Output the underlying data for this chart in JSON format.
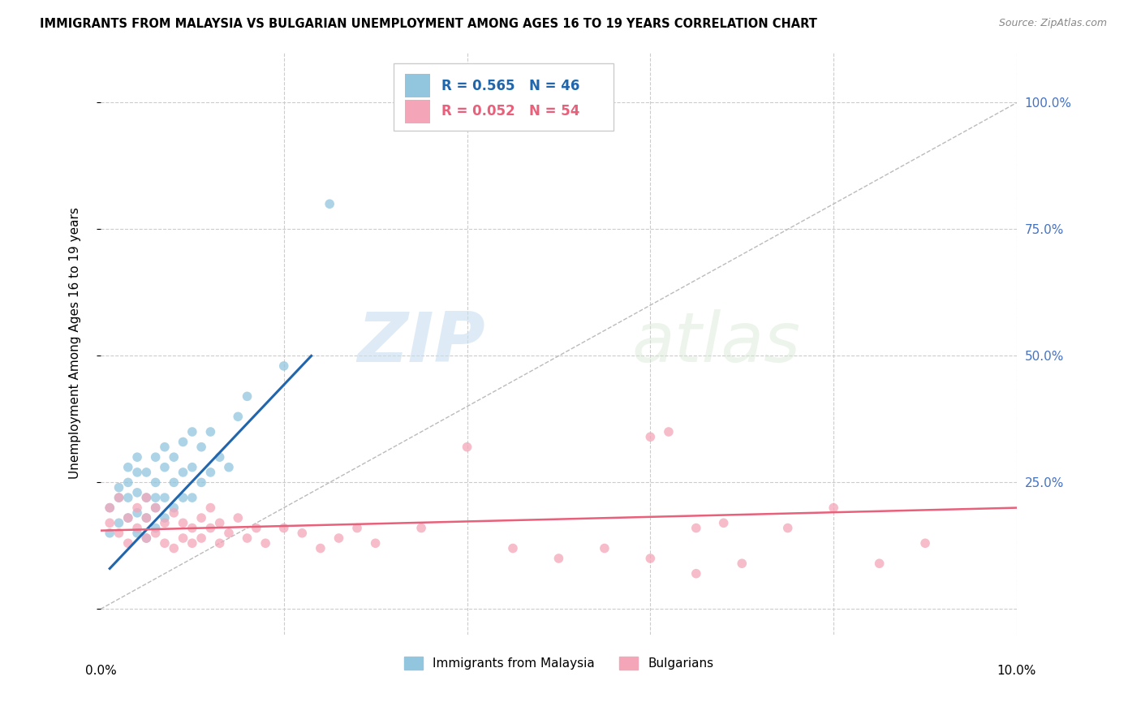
{
  "title": "IMMIGRANTS FROM MALAYSIA VS BULGARIAN UNEMPLOYMENT AMONG AGES 16 TO 19 YEARS CORRELATION CHART",
  "source": "Source: ZipAtlas.com",
  "ylabel": "Unemployment Among Ages 16 to 19 years",
  "xlim": [
    0.0,
    0.1
  ],
  "ylim": [
    -0.05,
    1.1
  ],
  "watermark_zip": "ZIP",
  "watermark_atlas": "atlas",
  "legend1_label": "Immigrants from Malaysia",
  "legend2_label": "Bulgarians",
  "r1": "0.565",
  "n1": "46",
  "r2": "0.052",
  "n2": "54",
  "blue_color": "#92c5de",
  "pink_color": "#f4a6b8",
  "blue_line_color": "#2166ac",
  "pink_line_color": "#e8607a",
  "diagonal_color": "#bbbbbb",
  "blue_scatter_x": [
    0.001,
    0.001,
    0.002,
    0.002,
    0.002,
    0.003,
    0.003,
    0.003,
    0.003,
    0.004,
    0.004,
    0.004,
    0.004,
    0.004,
    0.005,
    0.005,
    0.005,
    0.005,
    0.006,
    0.006,
    0.006,
    0.006,
    0.006,
    0.007,
    0.007,
    0.007,
    0.007,
    0.008,
    0.008,
    0.008,
    0.009,
    0.009,
    0.009,
    0.01,
    0.01,
    0.01,
    0.011,
    0.011,
    0.012,
    0.012,
    0.013,
    0.014,
    0.015,
    0.016,
    0.02,
    0.025
  ],
  "blue_scatter_y": [
    0.15,
    0.2,
    0.17,
    0.22,
    0.24,
    0.18,
    0.22,
    0.25,
    0.28,
    0.15,
    0.19,
    0.23,
    0.27,
    0.3,
    0.14,
    0.18,
    0.22,
    0.27,
    0.16,
    0.2,
    0.22,
    0.25,
    0.3,
    0.18,
    0.22,
    0.28,
    0.32,
    0.2,
    0.25,
    0.3,
    0.22,
    0.27,
    0.33,
    0.22,
    0.28,
    0.35,
    0.25,
    0.32,
    0.27,
    0.35,
    0.3,
    0.28,
    0.38,
    0.42,
    0.48,
    0.8
  ],
  "pink_scatter_x": [
    0.001,
    0.001,
    0.002,
    0.002,
    0.003,
    0.003,
    0.004,
    0.004,
    0.005,
    0.005,
    0.005,
    0.006,
    0.006,
    0.007,
    0.007,
    0.008,
    0.008,
    0.009,
    0.009,
    0.01,
    0.01,
    0.011,
    0.011,
    0.012,
    0.012,
    0.013,
    0.013,
    0.014,
    0.015,
    0.016,
    0.017,
    0.018,
    0.02,
    0.022,
    0.024,
    0.026,
    0.028,
    0.03,
    0.035,
    0.04,
    0.045,
    0.05,
    0.055,
    0.06,
    0.065,
    0.07,
    0.075,
    0.08,
    0.085,
    0.09,
    0.06,
    0.062,
    0.065,
    0.068
  ],
  "pink_scatter_y": [
    0.17,
    0.2,
    0.15,
    0.22,
    0.13,
    0.18,
    0.16,
    0.2,
    0.14,
    0.18,
    0.22,
    0.15,
    0.2,
    0.13,
    0.17,
    0.12,
    0.19,
    0.14,
    0.17,
    0.13,
    0.16,
    0.14,
    0.18,
    0.16,
    0.2,
    0.13,
    0.17,
    0.15,
    0.18,
    0.14,
    0.16,
    0.13,
    0.16,
    0.15,
    0.12,
    0.14,
    0.16,
    0.13,
    0.16,
    0.32,
    0.12,
    0.1,
    0.12,
    0.1,
    0.07,
    0.09,
    0.16,
    0.2,
    0.09,
    0.13,
    0.34,
    0.35,
    0.16,
    0.17
  ],
  "blue_trend_x": [
    0.001,
    0.023
  ],
  "blue_trend_y": [
    0.08,
    0.5
  ],
  "pink_trend_x": [
    0.0,
    0.1
  ],
  "pink_trend_y": [
    0.155,
    0.2
  ],
  "yticks": [
    0.0,
    0.25,
    0.5,
    0.75,
    1.0
  ],
  "ytick_labels_right": [
    "",
    "25.0%",
    "50.0%",
    "75.0%",
    "100.0%"
  ],
  "xtick_label_left": "0.0%",
  "xtick_label_right": "10.0%",
  "right_axis_color": "#4472c4"
}
